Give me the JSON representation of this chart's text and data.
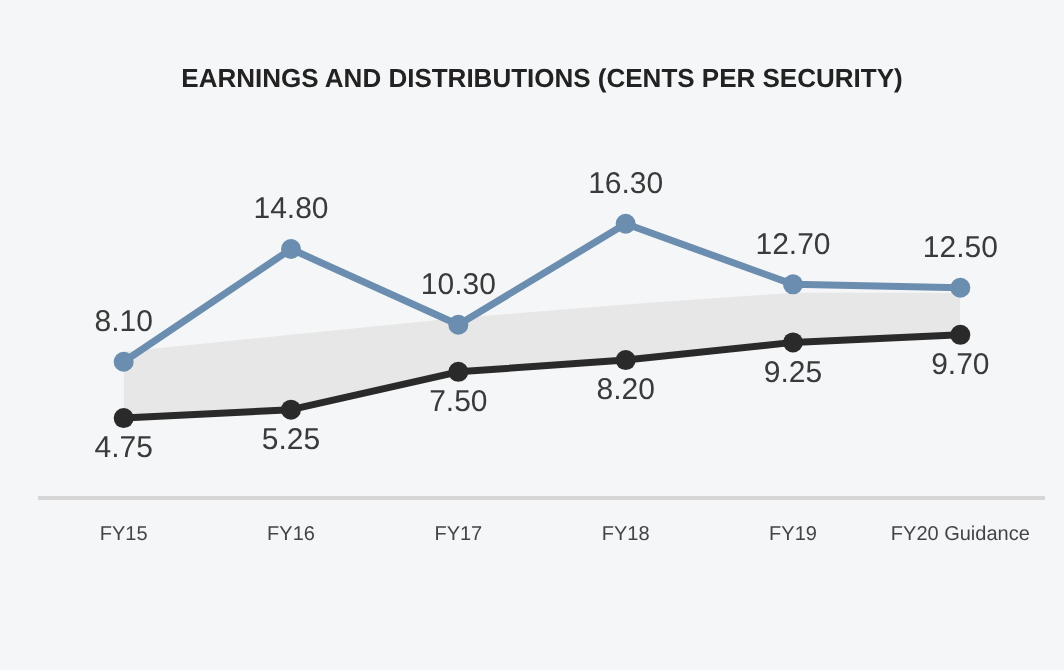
{
  "chart_data": {
    "type": "line",
    "title": "EARNINGS AND DISTRIBUTIONS (CENTS PER SECURITY)",
    "categories": [
      "FY15",
      "FY16",
      "FY17",
      "FY18",
      "FY19",
      "FY20 Guidance"
    ],
    "series": [
      {
        "color": "#6b8db0",
        "values": [
          8.1,
          14.8,
          10.3,
          16.3,
          12.7,
          12.5
        ],
        "value_labels": [
          "8.10",
          "14.80",
          "10.30",
          "16.30",
          "12.70",
          "12.50"
        ]
      },
      {
        "color": "#2a2a2a",
        "values": [
          4.75,
          5.25,
          7.5,
          8.2,
          9.25,
          9.7
        ],
        "value_labels": [
          "4.75",
          "5.25",
          "7.50",
          "8.20",
          "9.25",
          "9.70"
        ],
        "lower": [
          4.75,
          5.25,
          7.5,
          8.2,
          9.25,
          9.7
        ],
        "upper": [
          8.7,
          9.7,
          10.7,
          11.5,
          12.2,
          12.2
        ]
      }
    ],
    "marker": "circle",
    "line_style": "solid",
    "grid": false,
    "legend": false
  }
}
